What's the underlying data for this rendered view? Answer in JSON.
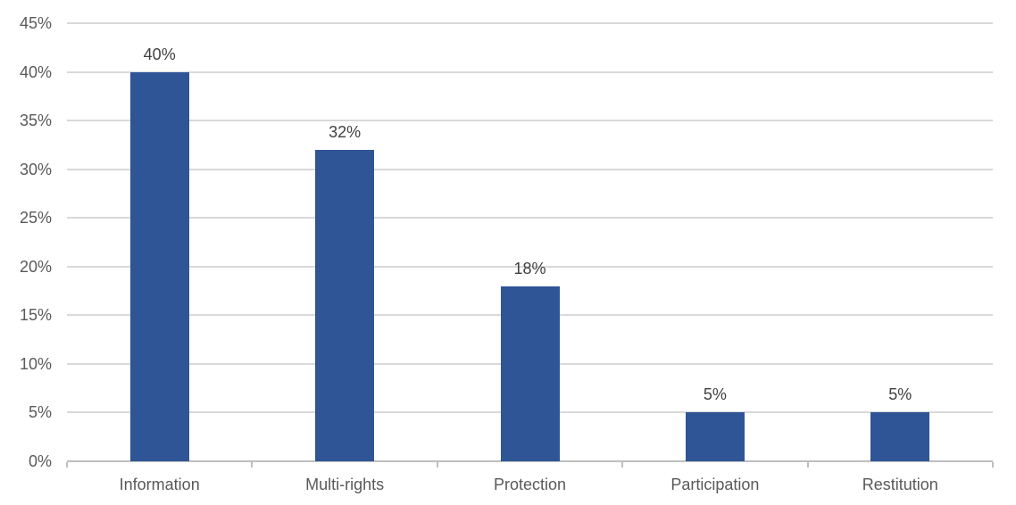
{
  "chart_data": {
    "type": "bar",
    "title": "",
    "xlabel": "",
    "ylabel": "",
    "categories": [
      "Information",
      "Multi-rights",
      "Protection",
      "Participation",
      "Restitution"
    ],
    "values": [
      40,
      32,
      18,
      5,
      5
    ],
    "data_labels": [
      "40%",
      "32%",
      "18%",
      "5%",
      "5%"
    ],
    "y_ticks": [
      {
        "value": 0,
        "label": "0%"
      },
      {
        "value": 5,
        "label": "5%"
      },
      {
        "value": 10,
        "label": "10%"
      },
      {
        "value": 15,
        "label": "15%"
      },
      {
        "value": 20,
        "label": "20%"
      },
      {
        "value": 25,
        "label": "25%"
      },
      {
        "value": 30,
        "label": "30%"
      },
      {
        "value": 35,
        "label": "35%"
      },
      {
        "value": 40,
        "label": "40%"
      },
      {
        "value": 45,
        "label": "45%"
      }
    ],
    "ylim": [
      0,
      45
    ],
    "grid": true,
    "legend": false,
    "colors": {
      "bar": "#2F5597",
      "gridline": "#D9D9D9",
      "axis_line": "#BFBFBF",
      "tick_label": "#595959",
      "category_label": "#595959",
      "data_label": "#404040",
      "background": "#FFFFFF"
    }
  }
}
